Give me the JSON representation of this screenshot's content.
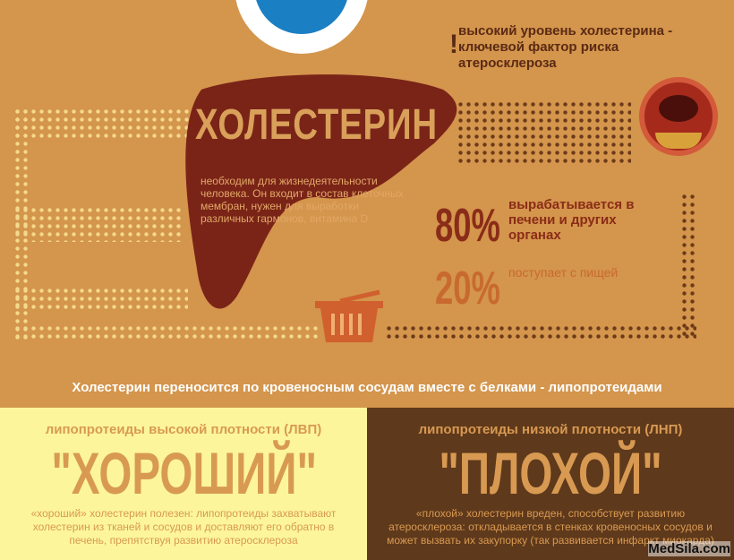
{
  "warning": {
    "mark": "!",
    "text": "высокий уровень холестерина - ключевой фактор риска атеросклероза"
  },
  "liver": {
    "title": "ХОЛЕСТЕРИН",
    "text": "необходим для жизнедеятельности человека. Он входит в состав клеточных мембран, нужен для выработки различных гармонов, витамина D"
  },
  "stats": [
    {
      "value": "80%",
      "text": "вырабатывается в печени и других органах"
    },
    {
      "value": "20%",
      "text": "поступает с пищей"
    }
  ],
  "subtitle": "Холестерин переносится по кровеносным сосудам вместе с белками - липопротеидами",
  "good": {
    "heading": "липопротеиды высокой плотности (ЛВП)",
    "label": "\"ХОРОШИЙ\"",
    "text": "«хороший» холестерин полезен: липопротеиды захватывают холестерин из тканей и сосудов и доставляют его обратно в печень, препятствуя развитию атеросклероза"
  },
  "bad": {
    "heading": "липопротеиды низкой плотности (ЛНП)",
    "label": "\"ПЛОХОЙ\"",
    "text": "«плохой» холестерин вреден, способствует развитию атеросклероза: откладывается в стенках кровеносных сосудов и может вызвать их закупорку (так развивается инфаркт миокарда)"
  },
  "watermark": "MedSila.com",
  "colors": {
    "background": "#d4954c",
    "liver": "#7a2418",
    "good": "#fcf59b",
    "bad": "#5f391b"
  }
}
